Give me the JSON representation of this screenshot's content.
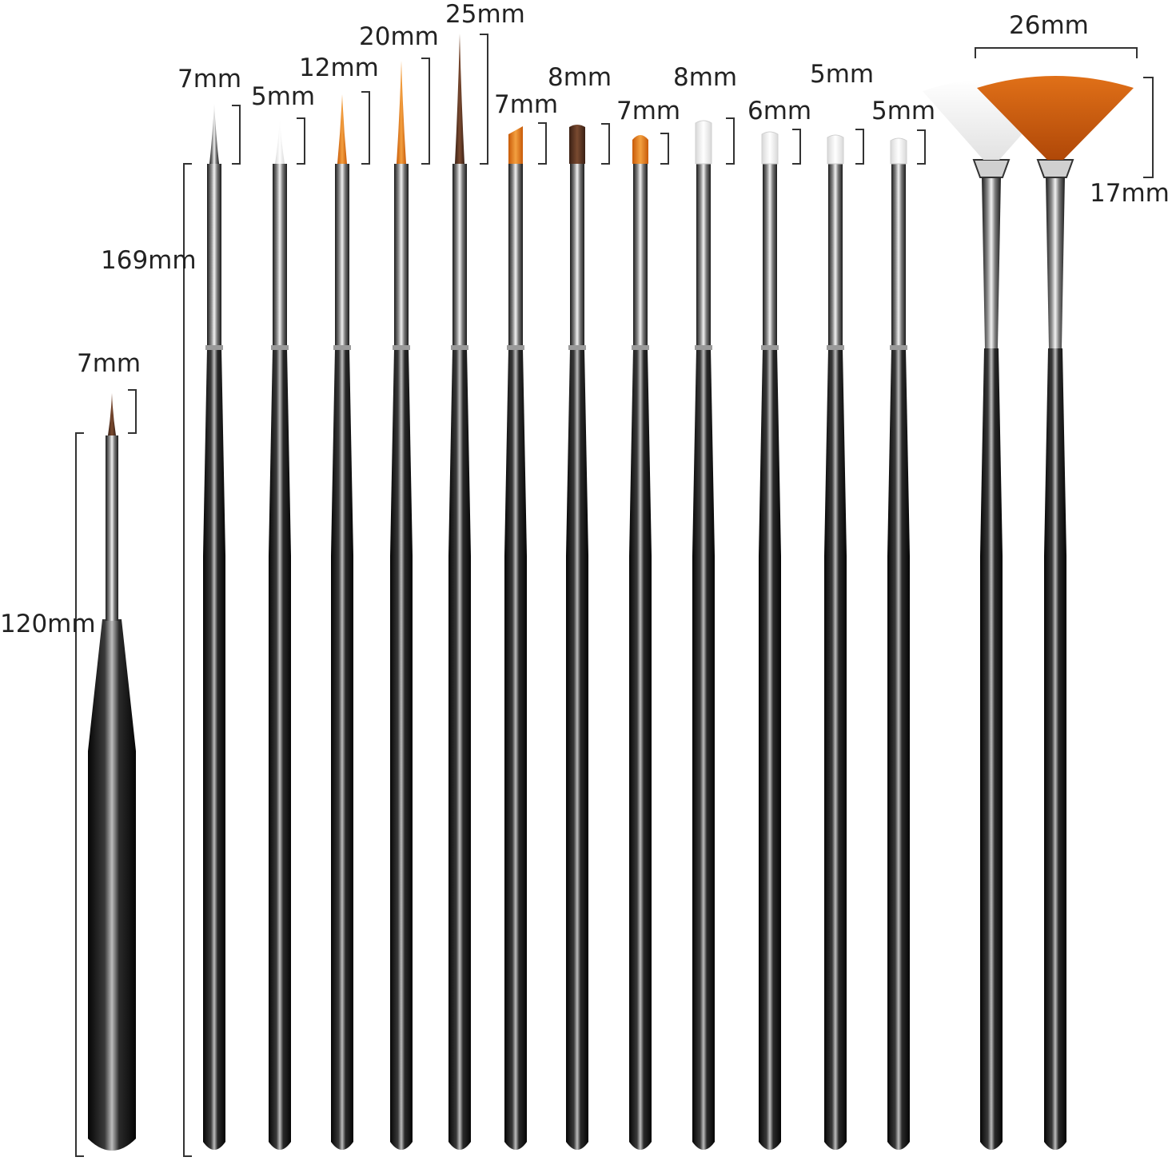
{
  "image": {
    "description_free": true,
    "background_color": "#ffffff",
    "handle_color": "#141414",
    "ferrule_color": "#b8b8b8",
    "colors": {
      "orange_bristle": "#e8801a",
      "brown_bristle": "#5a3622",
      "white_bristle": "#f4f4f4"
    }
  },
  "detail_brush": {
    "tip_label": "7mm",
    "length_label": "120mm",
    "bristle": "brown_bristle"
  },
  "set_length_label": "169mm",
  "brushes": [
    {
      "label": "7mm",
      "shape": "liner",
      "bristle": "ferrule"
    },
    {
      "label": "5mm",
      "shape": "liner",
      "bristle": "white_bristle"
    },
    {
      "label": "12mm",
      "shape": "liner",
      "bristle": "orange_bristle"
    },
    {
      "label": "20mm",
      "shape": "liner",
      "bristle": "orange_bristle"
    },
    {
      "label": "25mm",
      "shape": "liner",
      "bristle": "brown_bristle"
    },
    {
      "label": "7mm",
      "shape": "angled",
      "bristle": "orange_bristle"
    },
    {
      "label": "8mm",
      "shape": "flat",
      "bristle": "brown_bristle"
    },
    {
      "label": "7mm",
      "shape": "round",
      "bristle": "orange_bristle"
    },
    {
      "label": "8mm",
      "shape": "flat",
      "bristle": "white_bristle"
    },
    {
      "label": "6mm",
      "shape": "flat",
      "bristle": "white_bristle"
    },
    {
      "label": "5mm",
      "shape": "flat",
      "bristle": "white_bristle"
    },
    {
      "label": "5mm",
      "shape": "flat",
      "bristle": "white_bristle"
    },
    {
      "label": "",
      "shape": "fan",
      "bristle": "white_bristle"
    },
    {
      "label": "",
      "shape": "fan",
      "bristle": "orange_bristle"
    }
  ],
  "fan_width_label": "26mm",
  "fan_height_label": "17mm"
}
